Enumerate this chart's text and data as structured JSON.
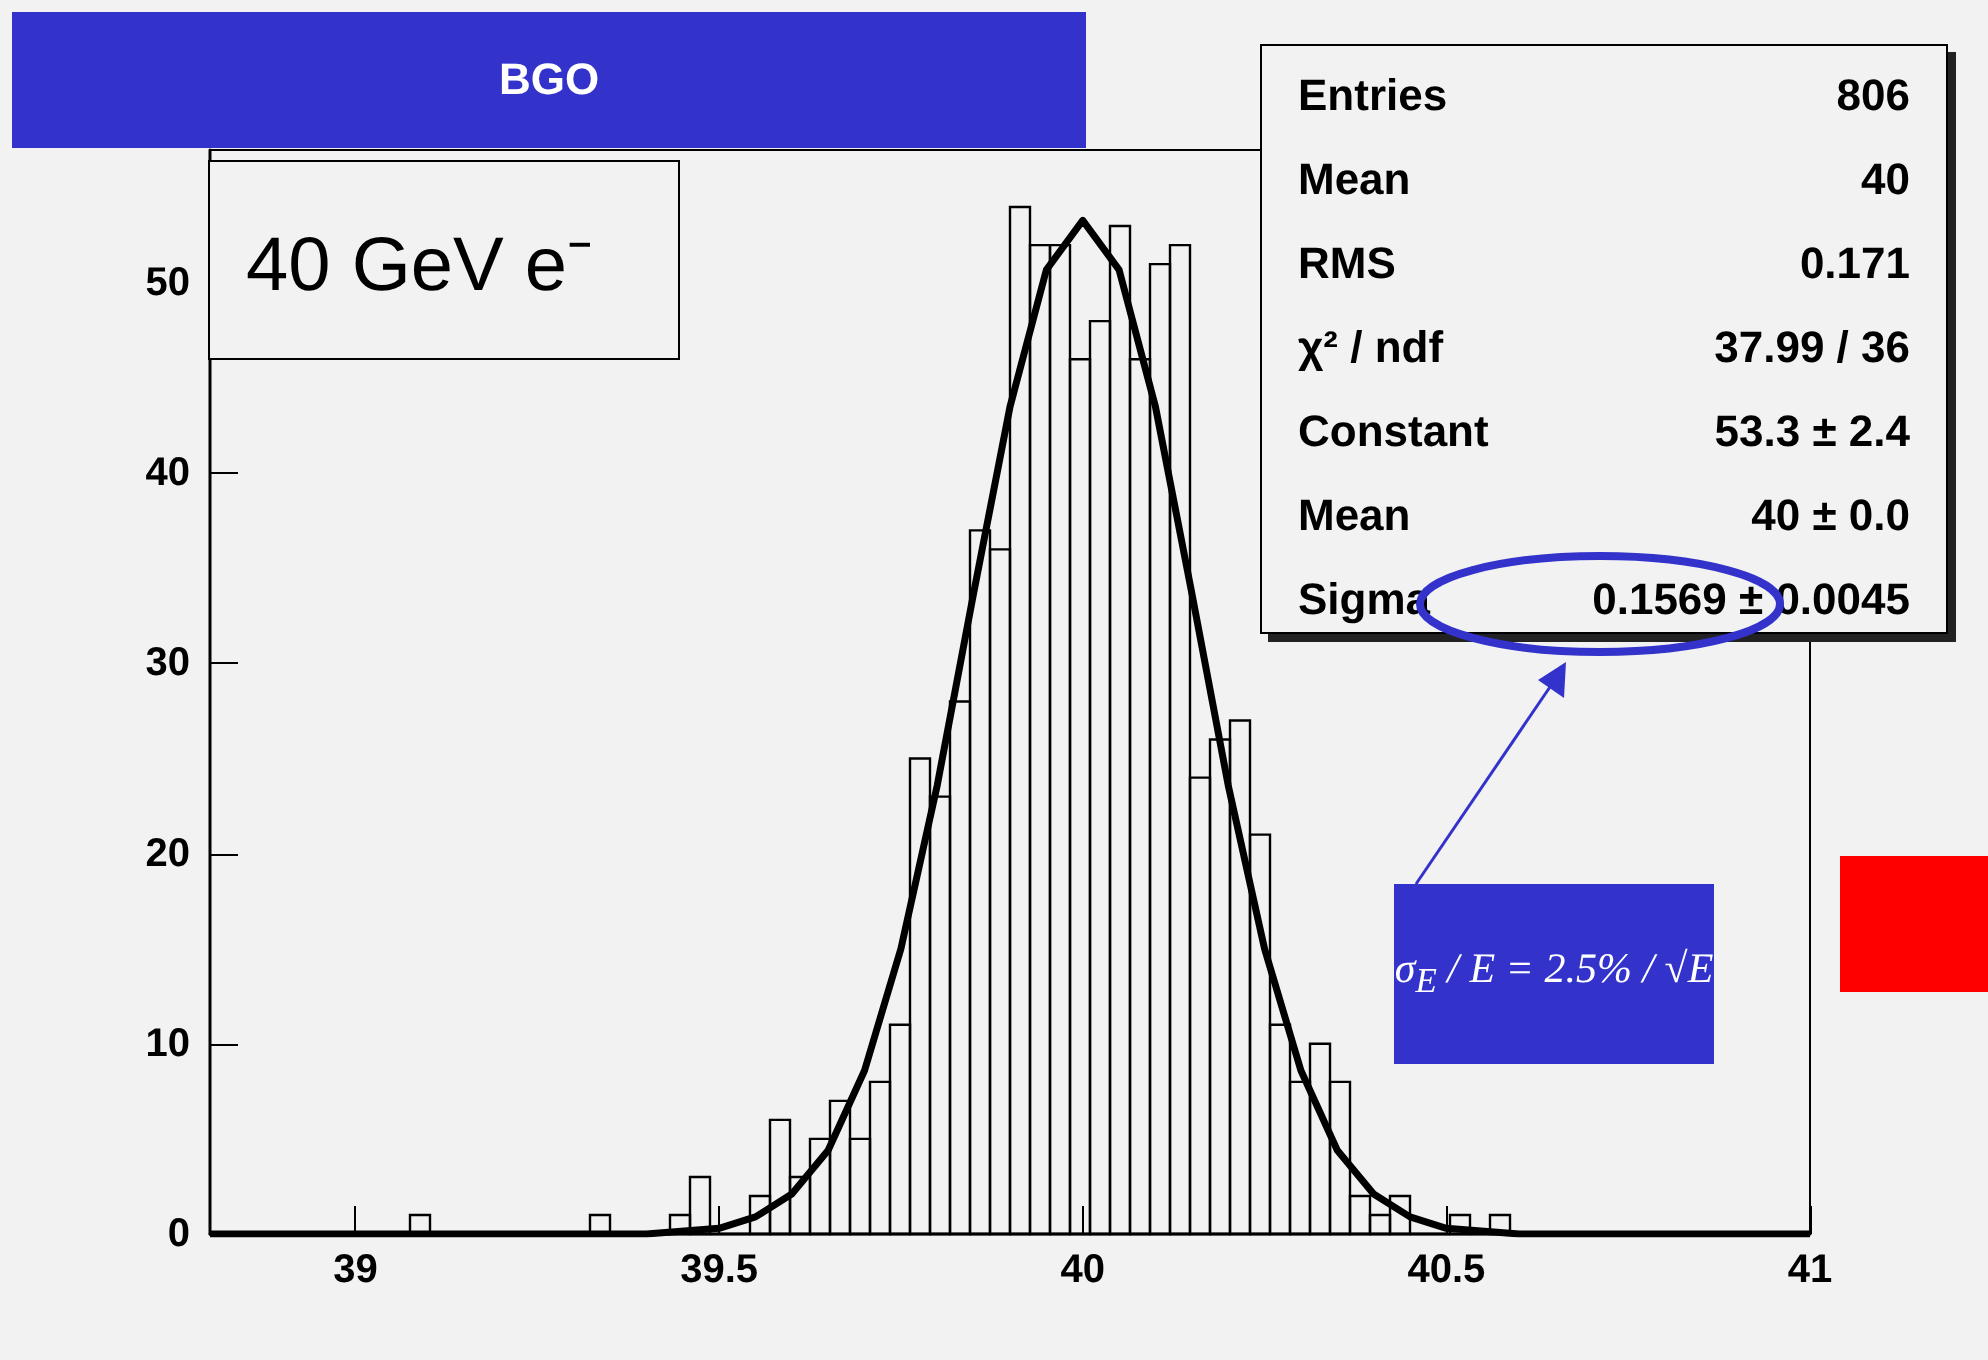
{
  "chart_data": {
    "type": "histogram",
    "title": "BGO",
    "subtitle": "40 GeV e⁻",
    "xlim": [
      38.8,
      41
    ],
    "xticks": [
      39,
      39.5,
      40,
      40.5,
      41
    ],
    "ylim": [
      0,
      57
    ],
    "yticks": [
      0,
      10,
      20,
      30,
      40,
      50
    ],
    "grid": false,
    "marker": "none",
    "series": [
      {
        "type": "histogram",
        "color": "#000000",
        "bins": [
          38.8,
          38.8275,
          38.855,
          38.8825,
          38.91,
          38.9375,
          38.965,
          38.9925,
          39.02,
          39.0475,
          39.075,
          39.1025,
          39.13,
          39.1575,
          39.185,
          39.2125,
          39.24,
          39.2675,
          39.295,
          39.3225,
          39.35,
          39.3775,
          39.405,
          39.4325,
          39.46,
          39.4875,
          39.515,
          39.5425,
          39.57,
          39.5975,
          39.625,
          39.6525,
          39.68,
          39.7075,
          39.735,
          39.7625,
          39.79,
          39.8175,
          39.845,
          39.8725,
          39.9,
          39.9275,
          39.955,
          39.9825,
          40.01,
          40.0375,
          40.065,
          40.0925,
          40.12,
          40.1475,
          40.175,
          40.2025,
          40.23,
          40.2575,
          40.285,
          40.3125,
          40.34,
          40.3675,
          40.395,
          40.4225,
          40.45,
          40.4775,
          40.505,
          40.5325,
          40.56,
          40.5875,
          40.615,
          40.6425,
          40.67,
          40.6975,
          40.725,
          40.7525,
          40.78,
          40.8075,
          40.835,
          40.8625,
          40.89,
          40.9175,
          40.945,
          40.9725,
          41
        ],
        "values": [
          0,
          0,
          0,
          0,
          0,
          0,
          0,
          0,
          0,
          0,
          1,
          0,
          0,
          0,
          0,
          0,
          0,
          0,
          0,
          1,
          0,
          0,
          0,
          1,
          3,
          0,
          0,
          2,
          6,
          3,
          5,
          7,
          5,
          8,
          11,
          25,
          23,
          28,
          37,
          36,
          54,
          52,
          52,
          46,
          48,
          53,
          46,
          51,
          52,
          24,
          26,
          27,
          21,
          11,
          8,
          10,
          8,
          2,
          1,
          2,
          0,
          0,
          1,
          0,
          1,
          0,
          0,
          0,
          0,
          0,
          0,
          0,
          0,
          0,
          0,
          0,
          0,
          0,
          0,
          0
        ]
      },
      {
        "type": "line",
        "color": "#000000",
        "x": [
          38.8,
          39.4,
          39.5,
          39.55,
          39.6,
          39.65,
          39.7,
          39.75,
          39.8,
          39.85,
          39.9,
          39.95,
          40,
          40.05,
          40.1,
          40.15,
          40.2,
          40.25,
          40.3,
          40.35,
          40.4,
          40.45,
          40.5,
          40.6,
          41
        ],
        "values": [
          0,
          0.0,
          0.3,
          0.9,
          2.1,
          4.4,
          8.6,
          15.0,
          23.6,
          33.7,
          43.5,
          50.7,
          53.3,
          50.7,
          43.5,
          33.7,
          23.6,
          15.0,
          8.6,
          4.4,
          2.1,
          0.9,
          0.3,
          0.0,
          0
        ]
      }
    ],
    "annotations": [
      "Entries",
      "806",
      "Mean",
      "40",
      "RMS",
      "0.171",
      "χ² / ndf",
      "37.99 / 36",
      "Constant",
      "53.3 ± 2.4",
      "Mean",
      "40 ± 0.0",
      "Sigma",
      "0.1569 ± 0.0045",
      "σ$_{E}$ / E = 2.5% / √E"
    ]
  }
}
